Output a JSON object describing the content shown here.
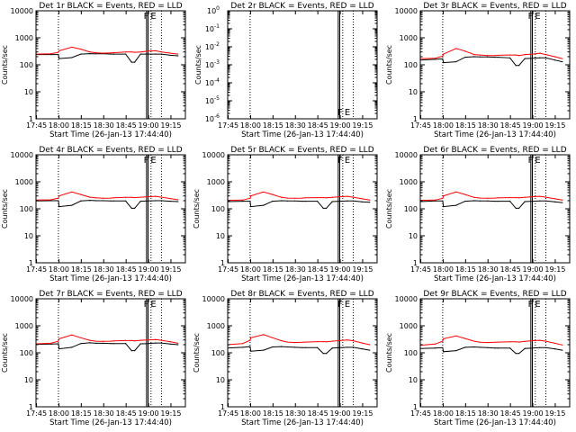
{
  "figure": {
    "panel_titles": [
      "Det 1r BLACK = Events, RED = LLD",
      "Det 2r BLACK = Events, RED = LLD",
      "Det 3r BLACK = Events, RED = LLD",
      "Det 4r BLACK = Events, RED = LLD",
      "Det 5r BLACK = Events, RED = LLD",
      "Det 6r BLACK = Events, RED = LLD",
      "Det 7r BLACK = Events, RED = LLD",
      "Det 8r BLACK = Events, RED = LLD",
      "Det 9r BLACK = Events, RED = LLD"
    ],
    "xlabel": "Start Time (26-Jan-13 17:44:40)",
    "ylabel": "Counts/sec",
    "xtick_labels": [
      "17:45",
      "18:00",
      "18:15",
      "18:30",
      "18:45",
      "19:00",
      "19:15"
    ],
    "log_ytick_labels": [
      "1",
      "10",
      "100",
      "1000",
      "10000"
    ],
    "empty_ytick_labels": [
      "10^-6",
      "10^-5",
      "10^-4",
      "10^-3",
      "10^-2",
      "10^-1",
      "10^0"
    ],
    "marker_labels": [
      "F",
      "E"
    ],
    "colors": {
      "events": "#000000",
      "lld": "#ff0000",
      "axis": "#000000"
    }
  },
  "chart_data": [
    {
      "type": "line",
      "panel": 1,
      "title": "Det 1r BLACK = Events, RED = LLD",
      "x_minutes": [
        0,
        10,
        15,
        15.5,
        24,
        30,
        36,
        40,
        45,
        50,
        52,
        60,
        64,
        66,
        70,
        75,
        80,
        84,
        90,
        95
      ],
      "series": [
        {
          "name": "Events",
          "color": "#000000",
          "values": [
            240,
            240,
            240,
            170,
            185,
            250,
            260,
            255,
            260,
            250,
            250,
            250,
            125,
            125,
            250,
            250,
            250,
            250,
            225,
            215
          ]
        },
        {
          "name": "LLD",
          "color": "#ff0000",
          "values": [
            250,
            255,
            290,
            330,
            450,
            380,
            300,
            280,
            270,
            275,
            280,
            300,
            300,
            290,
            300,
            320,
            330,
            300,
            270,
            250
          ]
        }
      ],
      "x_range_minutes": [
        0,
        100
      ],
      "ylim": [
        1,
        10000
      ],
      "yscale": "log",
      "vertical_lines_minutes": [
        15,
        74,
        75,
        77,
        84
      ],
      "marker": {
        "labels": [
          "F",
          "E"
        ],
        "x_minutes": 75.5
      }
    },
    {
      "type": "line",
      "panel": 2,
      "title": "Det 2r BLACK = Events, RED = LLD",
      "x_minutes": [],
      "series": [],
      "x_range_minutes": [
        0,
        100
      ],
      "ylim": [
        1e-06,
        1
      ],
      "yscale": "log",
      "vertical_lines_minutes": [
        15,
        74,
        75,
        77,
        84
      ],
      "marker": {
        "labels": [
          "F",
          "E"
        ],
        "x_minutes": 77
      }
    },
    {
      "type": "line",
      "panel": 3,
      "title": "Det 3r BLACK = Events, RED = LLD",
      "x_minutes": [
        0,
        10,
        15,
        15.5,
        24,
        30,
        36,
        40,
        45,
        50,
        52,
        60,
        64,
        66,
        70,
        75,
        80,
        84,
        90,
        95
      ],
      "series": [
        {
          "name": "Events",
          "color": "#000000",
          "values": [
            150,
            160,
            165,
            120,
            130,
            190,
            200,
            195,
            195,
            190,
            190,
            180,
            95,
            95,
            170,
            175,
            180,
            180,
            150,
            130
          ]
        },
        {
          "name": "LLD",
          "color": "#ff0000",
          "values": [
            170,
            175,
            210,
            250,
            400,
            320,
            240,
            230,
            220,
            220,
            225,
            230,
            230,
            220,
            240,
            250,
            270,
            240,
            200,
            170
          ]
        }
      ],
      "x_range_minutes": [
        0,
        100
      ],
      "ylim": [
        1,
        10000
      ],
      "yscale": "log",
      "vertical_lines_minutes": [
        15,
        74,
        75,
        77,
        84
      ],
      "marker": {
        "labels": [
          "F",
          "E"
        ],
        "x_minutes": 75.5
      }
    },
    {
      "type": "line",
      "panel": 4,
      "title": "Det 4r BLACK = Events, RED = LLD",
      "x_minutes": [
        0,
        10,
        15,
        15.5,
        24,
        30,
        36,
        40,
        45,
        50,
        52,
        60,
        64,
        66,
        70,
        75,
        80,
        84,
        90,
        95
      ],
      "series": [
        {
          "name": "Events",
          "color": "#000000",
          "values": [
            195,
            200,
            200,
            120,
            135,
            195,
            205,
            200,
            200,
            195,
            195,
            195,
            105,
            105,
            190,
            195,
            200,
            200,
            190,
            185
          ]
        },
        {
          "name": "LLD",
          "color": "#ff0000",
          "values": [
            210,
            215,
            250,
            300,
            420,
            340,
            270,
            255,
            245,
            250,
            255,
            265,
            265,
            260,
            270,
            280,
            290,
            270,
            240,
            215
          ]
        }
      ],
      "x_range_minutes": [
        0,
        100
      ],
      "ylim": [
        1,
        10000
      ],
      "yscale": "log",
      "vertical_lines_minutes": [
        15,
        74,
        75,
        77,
        84
      ],
      "marker": {
        "labels": [
          "F",
          "E"
        ],
        "x_minutes": 75.5
      }
    },
    {
      "type": "line",
      "panel": 5,
      "title": "Det 5r BLACK = Events, RED = LLD",
      "x_minutes": [
        0,
        10,
        15,
        15.5,
        24,
        30,
        36,
        40,
        45,
        50,
        52,
        60,
        64,
        66,
        70,
        75,
        80,
        84,
        90,
        95
      ],
      "series": [
        {
          "name": "Events",
          "color": "#000000",
          "values": [
            185,
            190,
            190,
            120,
            135,
            190,
            200,
            195,
            195,
            190,
            190,
            190,
            105,
            105,
            185,
            190,
            195,
            195,
            180,
            175
          ]
        },
        {
          "name": "LLD",
          "color": "#ff0000",
          "values": [
            205,
            210,
            245,
            300,
            420,
            340,
            265,
            250,
            245,
            250,
            255,
            260,
            260,
            255,
            265,
            280,
            290,
            270,
            235,
            210
          ]
        }
      ],
      "x_range_minutes": [
        0,
        100
      ],
      "ylim": [
        1,
        10000
      ],
      "yscale": "log",
      "vertical_lines_minutes": [
        15,
        74,
        75,
        77,
        84
      ],
      "marker": {
        "labels": [
          "F",
          "E"
        ],
        "x_minutes": 77
      }
    },
    {
      "type": "line",
      "panel": 6,
      "title": "Det 6r BLACK = Events, RED = LLD",
      "x_minutes": [
        0,
        10,
        15,
        15.5,
        24,
        30,
        36,
        40,
        45,
        50,
        52,
        60,
        64,
        66,
        70,
        75,
        80,
        84,
        90,
        95
      ],
      "series": [
        {
          "name": "Events",
          "color": "#000000",
          "values": [
            185,
            195,
            195,
            120,
            135,
            190,
            200,
            195,
            195,
            190,
            190,
            190,
            105,
            105,
            185,
            190,
            195,
            195,
            180,
            170
          ]
        },
        {
          "name": "LLD",
          "color": "#ff0000",
          "values": [
            205,
            210,
            245,
            300,
            420,
            340,
            265,
            250,
            245,
            250,
            255,
            260,
            260,
            255,
            265,
            280,
            290,
            270,
            235,
            210
          ]
        }
      ],
      "x_range_minutes": [
        0,
        100
      ],
      "ylim": [
        1,
        10000
      ],
      "yscale": "log",
      "vertical_lines_minutes": [
        15,
        74,
        75,
        77,
        84
      ],
      "marker": {
        "labels": [
          "F",
          "E"
        ],
        "x_minutes": 75.5
      }
    },
    {
      "type": "line",
      "panel": 7,
      "title": "Det 7r BLACK = Events, RED = LLD",
      "x_minutes": [
        0,
        10,
        15,
        15.5,
        24,
        30,
        36,
        40,
        45,
        50,
        52,
        60,
        64,
        66,
        70,
        75,
        80,
        84,
        90,
        95
      ],
      "series": [
        {
          "name": "Events",
          "color": "#000000",
          "values": [
            205,
            210,
            215,
            140,
            160,
            220,
            235,
            225,
            225,
            220,
            220,
            220,
            120,
            120,
            215,
            220,
            230,
            230,
            210,
            200
          ]
        },
        {
          "name": "LLD",
          "color": "#ff0000",
          "values": [
            215,
            225,
            270,
            330,
            460,
            360,
            290,
            270,
            265,
            270,
            275,
            285,
            285,
            275,
            290,
            300,
            310,
            290,
            255,
            225
          ]
        }
      ],
      "x_range_minutes": [
        0,
        100
      ],
      "ylim": [
        1,
        10000
      ],
      "yscale": "log",
      "vertical_lines_minutes": [
        15,
        74,
        75,
        77,
        84
      ],
      "marker": {
        "labels": [
          "F",
          "E"
        ],
        "x_minutes": 75.5
      }
    },
    {
      "type": "line",
      "panel": 8,
      "title": "Det 8r BLACK = Events, RED = LLD",
      "x_minutes": [
        0,
        10,
        15,
        15.5,
        24,
        30,
        36,
        40,
        45,
        50,
        52,
        60,
        64,
        66,
        70,
        75,
        80,
        84,
        90,
        95
      ],
      "series": [
        {
          "name": "Events",
          "color": "#000000",
          "values": [
            150,
            160,
            170,
            115,
            125,
            165,
            170,
            165,
            160,
            155,
            155,
            155,
            95,
            95,
            150,
            155,
            160,
            160,
            140,
            125
          ]
        },
        {
          "name": "LLD",
          "color": "#ff0000",
          "values": [
            200,
            220,
            290,
            360,
            470,
            360,
            280,
            250,
            240,
            245,
            250,
            260,
            260,
            255,
            270,
            285,
            300,
            280,
            230,
            200
          ]
        }
      ],
      "x_range_minutes": [
        0,
        100
      ],
      "ylim": [
        1,
        10000
      ],
      "yscale": "log",
      "vertical_lines_minutes": [
        15,
        74,
        75,
        77,
        84
      ],
      "marker": {
        "labels": [
          "F",
          "E"
        ],
        "x_minutes": 77
      }
    },
    {
      "type": "line",
      "panel": 9,
      "title": "Det 9r BLACK = Events, RED = LLD",
      "x_minutes": [
        0,
        10,
        15,
        15.5,
        24,
        30,
        36,
        40,
        45,
        50,
        52,
        60,
        64,
        66,
        70,
        75,
        80,
        84,
        90,
        95
      ],
      "series": [
        {
          "name": "Events",
          "color": "#000000",
          "values": [
            145,
            150,
            155,
            110,
            120,
            160,
            165,
            160,
            155,
            150,
            150,
            150,
            95,
            95,
            145,
            150,
            155,
            155,
            140,
            125
          ]
        },
        {
          "name": "LLD",
          "color": "#ff0000",
          "values": [
            190,
            210,
            270,
            330,
            420,
            340,
            270,
            245,
            240,
            245,
            250,
            255,
            255,
            250,
            265,
            280,
            290,
            270,
            225,
            195
          ]
        }
      ],
      "x_range_minutes": [
        0,
        100
      ],
      "ylim": [
        1,
        10000
      ],
      "yscale": "log",
      "vertical_lines_minutes": [
        15,
        74,
        75,
        77,
        84
      ],
      "marker": {
        "labels": [
          "F",
          "E"
        ],
        "x_minutes": 75.5
      }
    }
  ]
}
